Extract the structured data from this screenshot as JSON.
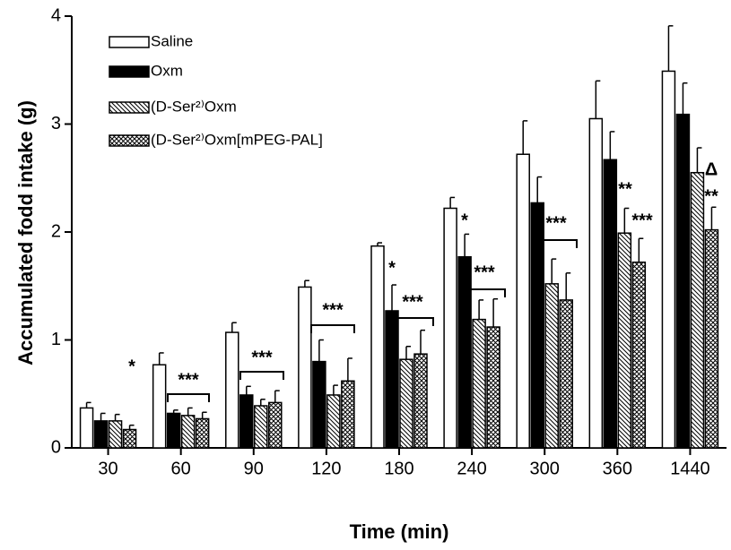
{
  "chart_data": {
    "type": "bar",
    "x_label": "Time (min)",
    "y_label": "Accumulated fodd intake (g)",
    "categories": [
      "30",
      "60",
      "90",
      "120",
      "180",
      "240",
      "300",
      "360",
      "1440"
    ],
    "ylim": [
      0,
      4
    ],
    "yticks": [
      0,
      1,
      2,
      3,
      4
    ],
    "legend": "upper-left",
    "series": [
      {
        "name": "Saline",
        "color": "#ffffff",
        "hatch": "none",
        "values": [
          0.37,
          0.77,
          1.07,
          1.49,
          1.87,
          2.22,
          2.72,
          3.05,
          3.49
        ],
        "errors": [
          0.05,
          0.11,
          0.09,
          0.06,
          0.03,
          0.1,
          0.31,
          0.35,
          0.42
        ]
      },
      {
        "name": "Oxm",
        "color": "#000000",
        "hatch": "none",
        "values": [
          0.25,
          0.32,
          0.49,
          0.8,
          1.27,
          1.77,
          2.27,
          2.67,
          3.09
        ],
        "errors": [
          0.07,
          0.03,
          0.08,
          0.2,
          0.24,
          0.21,
          0.24,
          0.26,
          0.29
        ]
      },
      {
        "name": "(D-Ser²⁾Oxm",
        "color": "#000000",
        "hatch": "diagonal",
        "values": [
          0.25,
          0.3,
          0.39,
          0.49,
          0.82,
          1.19,
          1.52,
          1.99,
          2.55
        ],
        "errors": [
          0.06,
          0.07,
          0.06,
          0.09,
          0.12,
          0.18,
          0.23,
          0.23,
          0.23
        ]
      },
      {
        "name": "(D-Ser²⁾Oxm[mPEG-PAL]",
        "color": "#000000",
        "hatch": "cross",
        "values": [
          0.17,
          0.27,
          0.42,
          0.62,
          0.87,
          1.12,
          1.37,
          1.72,
          2.02
        ],
        "errors": [
          0.04,
          0.06,
          0.11,
          0.21,
          0.22,
          0.26,
          0.25,
          0.22,
          0.21
        ]
      }
    ],
    "annotations": [
      "*",
      "***",
      "***",
      "***",
      "*",
      "***",
      "*",
      "***",
      "***",
      "**",
      "***",
      "Δ",
      "**"
    ]
  }
}
